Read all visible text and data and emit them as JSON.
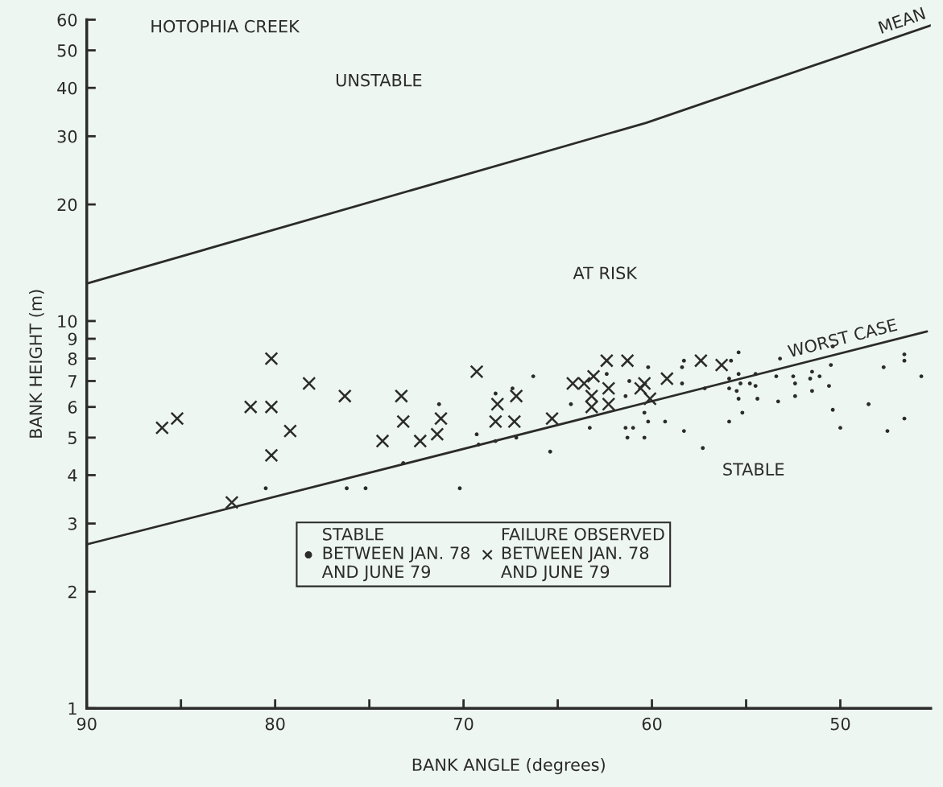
{
  "chart_data": {
    "type": "scatter",
    "title": "HOTOPHIA CREEK",
    "xlabel": "BANK ANGLE (degrees)",
    "ylabel": "BANK HEIGHT (m)",
    "log": "y",
    "xlim": [
      90,
      45.2
    ],
    "ylim": [
      1,
      60
    ],
    "xticks": [
      90,
      {
        "value": 85,
        "label": null
      },
      80,
      {
        "value": 75,
        "label": null
      },
      70,
      {
        "value": 65,
        "label": null
      },
      60,
      {
        "value": 55,
        "label": null
      },
      50
    ],
    "yticks": [
      1,
      2,
      3,
      4,
      5,
      6,
      7,
      8,
      9,
      10,
      20,
      30,
      40,
      50,
      60
    ],
    "grid": false,
    "legend": "bottom",
    "annotations": [
      "UNSTABLE",
      "AT RISK",
      "STABLE"
    ],
    "series": [
      {
        "name": "MEAN",
        "type": "line",
        "color": "#2b2b2b",
        "marker": "none",
        "x": [
          90,
          60.3,
          45.2
        ],
        "values": [
          12.5,
          32.5,
          58
        ]
      },
      {
        "name": "WORST CASE",
        "type": "line",
        "color": "#2b2b2b",
        "marker": "none",
        "x": [
          90,
          45.4
        ],
        "values": [
          2.65,
          9.4
        ]
      },
      {
        "name": "STABLE\nBETWEEN JAN. 78\nAND JUNE 79",
        "color": "#2b2b2b",
        "marker": "circle",
        "x": [
          80.5,
          76.2,
          75.2,
          73.2,
          71.3,
          70.2,
          69.3,
          69.2,
          68.3,
          68.3,
          67.4,
          67.2,
          66.3,
          65.4,
          64.3,
          63.3,
          62.4,
          61.2,
          61.4,
          61.4,
          61.0,
          61.3,
          60.2,
          60.4,
          60.2,
          60.4,
          59.3,
          58.4,
          58.4,
          58.3,
          58.3,
          57.2,
          57.3,
          55.9,
          55.9,
          55.9,
          55.8,
          55.4,
          55.4,
          55.3,
          55.5,
          55.4,
          55.2,
          54.8,
          54.5,
          54.5,
          54.4,
          53.2,
          53.4,
          53.3,
          52.5,
          52.4,
          52.4,
          51.5,
          51.6,
          51.1,
          51.5,
          50.4,
          50.5,
          50.6,
          50.4,
          50.0,
          48.5,
          47.7,
          47.5,
          46.6,
          46.6,
          46.6,
          45.7
        ],
        "values": [
          3.7,
          3.7,
          3.7,
          4.3,
          6.1,
          3.7,
          5.1,
          4.8,
          6.5,
          4.9,
          6.7,
          5.0,
          7.2,
          4.6,
          6.1,
          5.3,
          7.3,
          7.0,
          6.4,
          5.3,
          5.3,
          5.0,
          7.6,
          5.8,
          5.5,
          5.0,
          5.5,
          7.6,
          6.9,
          7.9,
          5.2,
          6.7,
          4.7,
          5.5,
          7.1,
          6.7,
          7.9,
          8.3,
          7.3,
          6.9,
          6.6,
          6.3,
          5.8,
          6.9,
          7.3,
          6.8,
          6.3,
          8.0,
          7.2,
          6.2,
          7.2,
          6.9,
          6.4,
          7.4,
          7.1,
          7.2,
          6.6,
          8.6,
          7.7,
          6.8,
          5.9,
          5.3,
          6.1,
          7.6,
          5.2,
          8.2,
          7.9,
          5.6,
          7.2
        ]
      },
      {
        "name": "FAILURE OBSERVED\nBETWEEN JAN. 78\nAND JUNE 79",
        "color": "#2b2b2b",
        "marker": "cross",
        "x": [
          86.0,
          85.2,
          81.3,
          80.2,
          80.2,
          78.2,
          76.3,
          79.2,
          80.2,
          74.3,
          82.3,
          73.3,
          73.2,
          72.3,
          71.4,
          71.2,
          69.3,
          68.2,
          68.3,
          67.2,
          67.3,
          65.3,
          64.2,
          63.6,
          63.1,
          63.2,
          63.2,
          62.4,
          62.3,
          62.3,
          61.3,
          60.6,
          60.4,
          60.1,
          59.2,
          57.4,
          56.3
        ],
        "values": [
          5.3,
          5.6,
          6.0,
          6.0,
          8.0,
          6.9,
          6.4,
          5.2,
          4.5,
          4.9,
          3.4,
          6.4,
          5.5,
          4.9,
          5.1,
          5.6,
          7.4,
          6.1,
          5.5,
          6.4,
          5.5,
          5.6,
          6.9,
          6.9,
          7.2,
          6.4,
          6.0,
          7.9,
          6.7,
          6.1,
          7.9,
          6.7,
          6.9,
          6.3,
          7.1,
          7.9,
          7.7
        ]
      }
    ]
  }
}
